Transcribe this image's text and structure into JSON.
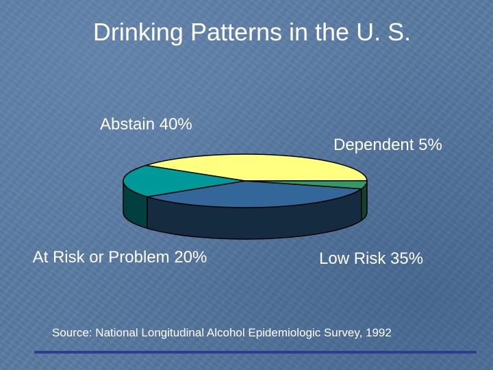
{
  "slide": {
    "title": "Drinking Patterns in the U. S.",
    "source": "Source: National Longitudinal Alcohol Epidemiologic Survey, 1992"
  },
  "chart_data": {
    "type": "pie",
    "title": "Drinking Patterns in the U. S.",
    "style": "3d",
    "slices": [
      {
        "name": "Abstain",
        "value": 40,
        "label": "Abstain 40%",
        "color": "#ffff80"
      },
      {
        "name": "Dependent",
        "value": 5,
        "label": "Dependent 5%",
        "color": "#339966"
      },
      {
        "name": "Low Risk",
        "value": 35,
        "label": "Low Risk 35%",
        "color": "#336699"
      },
      {
        "name": "At Risk or Problem",
        "value": 20,
        "label": "At Risk or Problem 20%",
        "color": "#009999"
      }
    ]
  },
  "colors": {
    "background": "#5a7ba3",
    "rule": "#2b3d8f"
  }
}
